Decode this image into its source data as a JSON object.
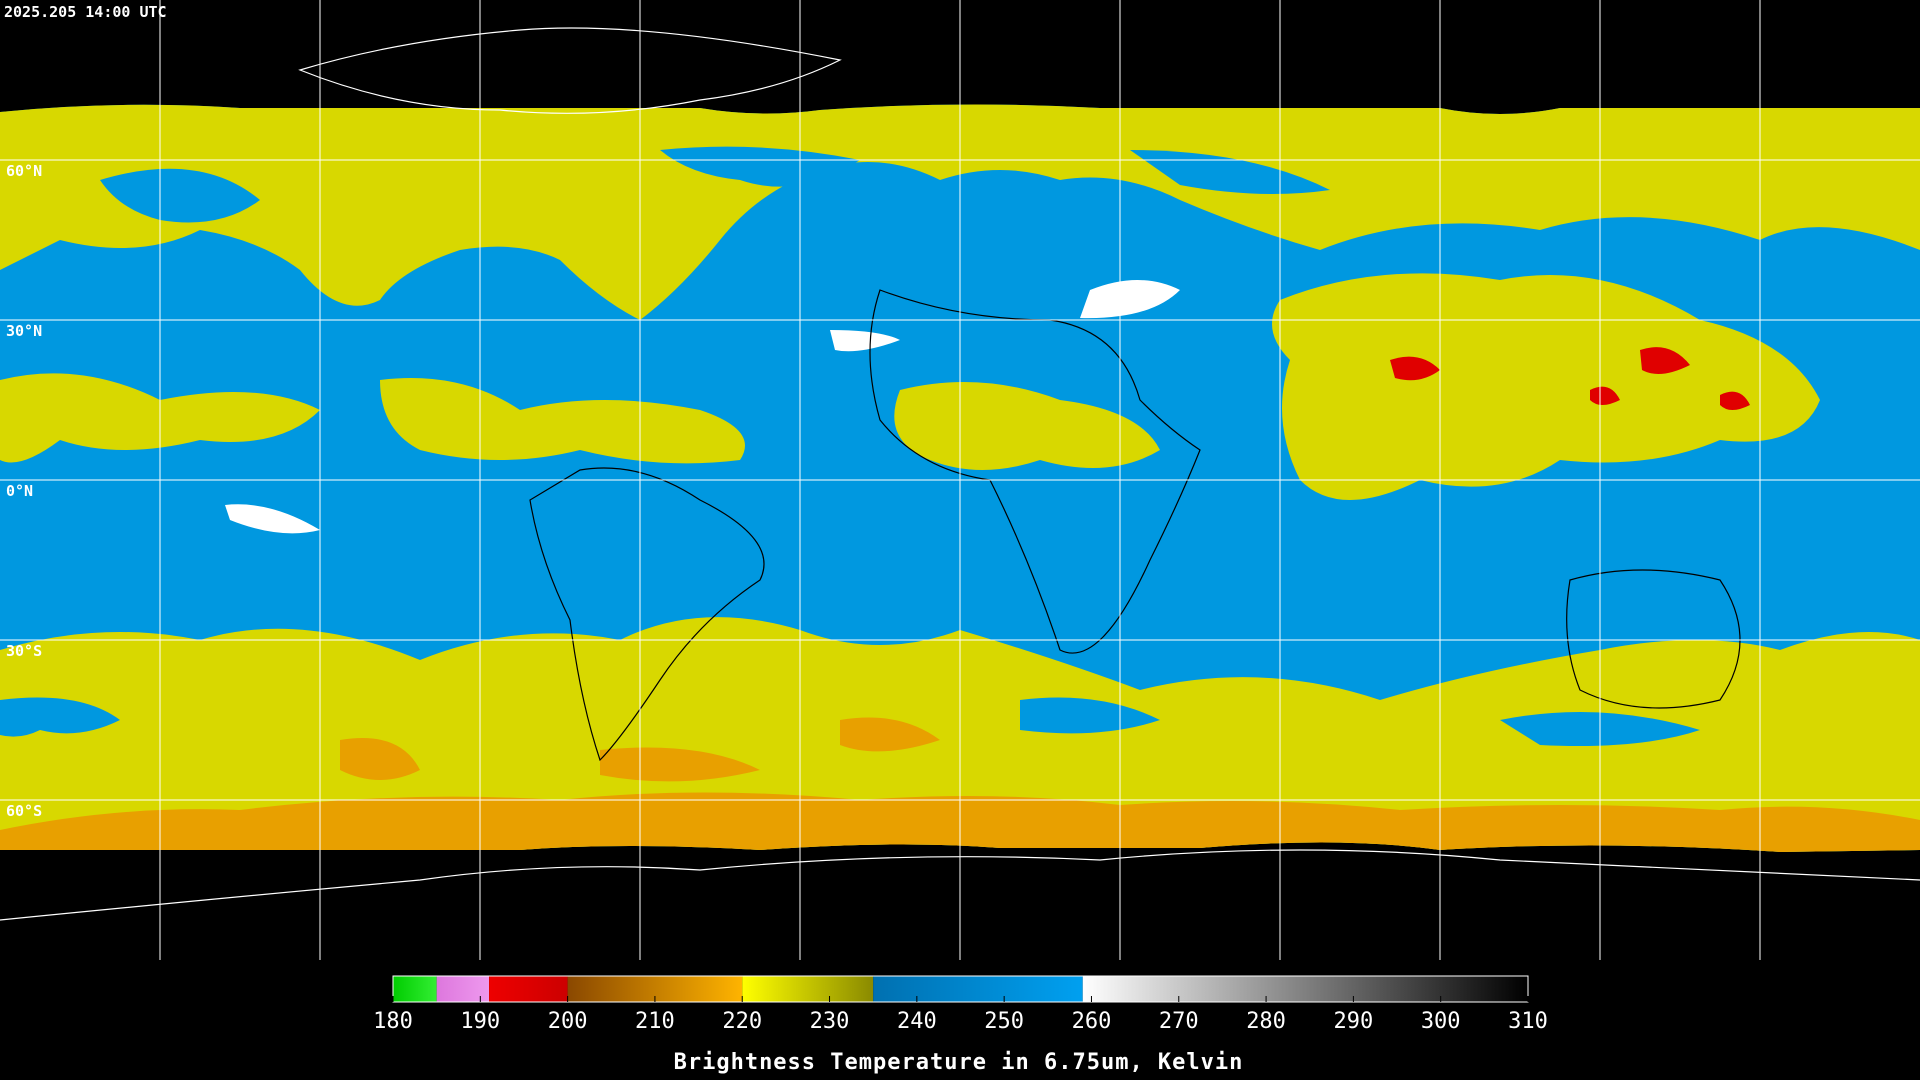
{
  "header": {
    "timestamp": "2025.205 14:00 UTC"
  },
  "grid": {
    "lon": [
      -150,
      -120,
      -90,
      -60,
      -30,
      0,
      30,
      60,
      90,
      120,
      150
    ],
    "lat": [
      {
        "value": 60,
        "label": "60°N"
      },
      {
        "value": 30,
        "label": "30°N"
      },
      {
        "value": 0,
        "label": "0°N"
      },
      {
        "value": -30,
        "label": "30°S"
      },
      {
        "value": -60,
        "label": "60°S"
      }
    ]
  },
  "colorbar": {
    "title": "Brightness Temperature in 6.75um, Kelvin",
    "range": [
      180,
      310
    ],
    "ticks": [
      180,
      190,
      200,
      210,
      220,
      230,
      240,
      250,
      260,
      270,
      280,
      290,
      300,
      310
    ],
    "segments": [
      {
        "from": 180,
        "to": 185,
        "colors": [
          "#00cc00",
          "#33ee33"
        ]
      },
      {
        "from": 185,
        "to": 191,
        "colors": [
          "#dd77dd",
          "#ee99ee"
        ]
      },
      {
        "from": 191,
        "to": 200,
        "colors": [
          "#ee0000",
          "#cc0000"
        ]
      },
      {
        "from": 200,
        "to": 220,
        "colors": [
          "#8a4800",
          "#ffb400"
        ]
      },
      {
        "from": 220,
        "to": 235,
        "colors": [
          "#ffff00",
          "#8a8a00"
        ]
      },
      {
        "from": 235,
        "to": 259,
        "colors": [
          "#0070b0",
          "#00a0f0"
        ]
      },
      {
        "from": 259,
        "to": 310,
        "colors": [
          "#ffffff",
          "#000000"
        ]
      }
    ]
  }
}
